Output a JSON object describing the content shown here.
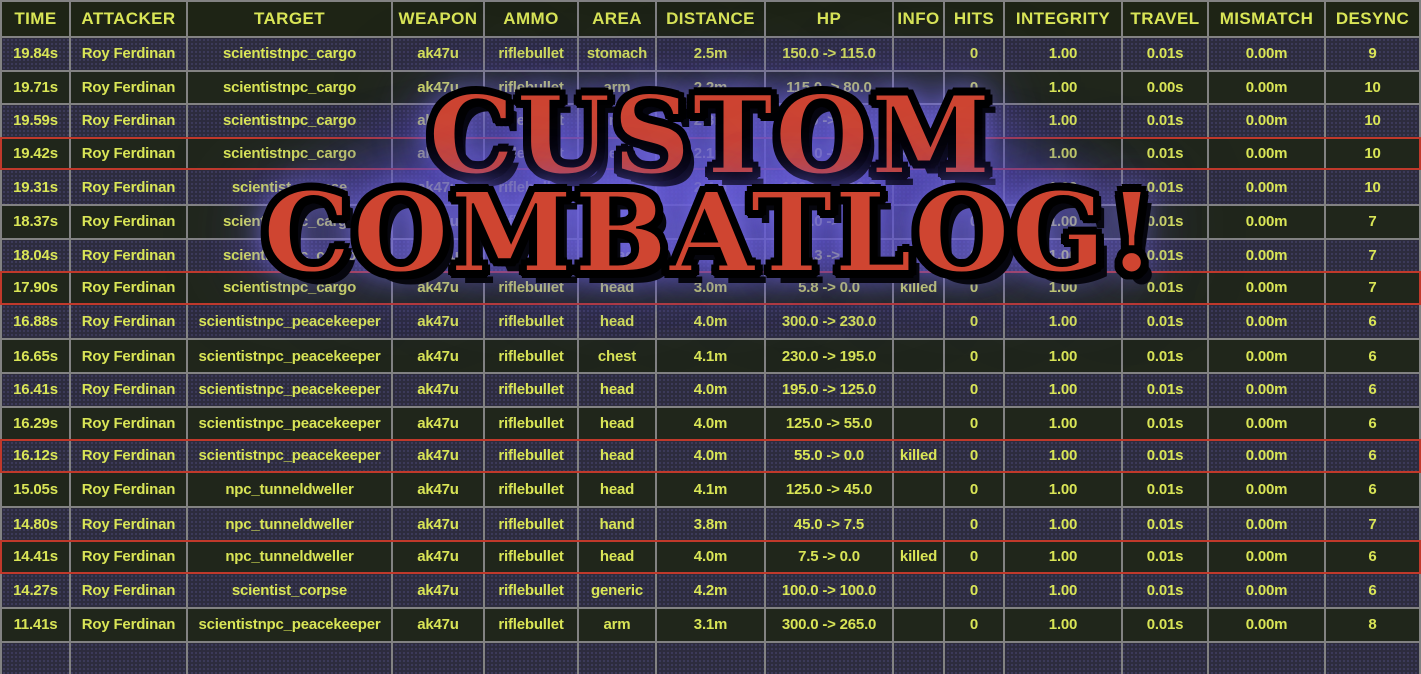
{
  "overlay": {
    "line1": "CUSTOM",
    "line2": "COMBATLOG!",
    "text_color": "#cf4531",
    "glow_color": "#6a5fd6"
  },
  "colors": {
    "row_dark": "#20261b",
    "row_navy": "#2d2c3e",
    "header_bg": "#1e2415",
    "text_yellow": "#d9e556",
    "grid": "#828282",
    "red": "#c0392b",
    "bg": "#000000",
    "overlay_red": "#cf4531"
  },
  "table": {
    "columns": [
      {
        "key": "time",
        "label": "TIME"
      },
      {
        "key": "attacker",
        "label": "ATTACKER"
      },
      {
        "key": "target",
        "label": "TARGET"
      },
      {
        "key": "weapon",
        "label": "WEAPON"
      },
      {
        "key": "ammo",
        "label": "AMMO"
      },
      {
        "key": "area",
        "label": "AREA"
      },
      {
        "key": "distance",
        "label": "DISTANCE"
      },
      {
        "key": "hp",
        "label": "HP"
      },
      {
        "key": "info",
        "label": "INFO"
      },
      {
        "key": "hits",
        "label": "HITS"
      },
      {
        "key": "integrity",
        "label": "INTEGRITY"
      },
      {
        "key": "travel",
        "label": "TRAVEL"
      },
      {
        "key": "mismatch",
        "label": "MISMATCH"
      },
      {
        "key": "desync",
        "label": "DESYNC"
      }
    ],
    "rows": [
      {
        "time": "19.84s",
        "attacker": "Roy Ferdinan",
        "target": "scientistnpc_cargo",
        "weapon": "ak47u",
        "ammo": "riflebullet",
        "area": "stomach",
        "distance": "2.5m",
        "hp": "150.0 -> 115.0",
        "info": "",
        "hits": "0",
        "integrity": "1.00",
        "travel": "0.01s",
        "mismatch": "0.00m",
        "desync": "9",
        "killed": false
      },
      {
        "time": "19.71s",
        "attacker": "Roy Ferdinan",
        "target": "scientistnpc_cargo",
        "weapon": "ak47u",
        "ammo": "riflebullet",
        "area": "arm",
        "distance": "2.2m",
        "hp": "115.0 -> 80.0",
        "info": "",
        "hits": "0",
        "integrity": "1.00",
        "travel": "0.00s",
        "mismatch": "0.00m",
        "desync": "10",
        "killed": false
      },
      {
        "time": "19.59s",
        "attacker": "Roy Ferdinan",
        "target": "scientistnpc_cargo",
        "weapon": "ak47u",
        "ammo": "riflebullet",
        "area": "stomach",
        "distance": "2.3m",
        "hp": "80.0 -> 45.0",
        "info": "",
        "hits": "0",
        "integrity": "1.00",
        "travel": "0.01s",
        "mismatch": "0.00m",
        "desync": "10",
        "killed": false
      },
      {
        "time": "19.42s",
        "attacker": "Roy Ferdinan",
        "target": "scientistnpc_cargo",
        "weapon": "ak47u",
        "ammo": "riflebullet",
        "area": "head",
        "distance": "2.1m",
        "hp": "45.0 -> 0.0",
        "info": "killed",
        "hits": "0",
        "integrity": "1.00",
        "travel": "0.01s",
        "mismatch": "0.00m",
        "desync": "10",
        "killed": true
      },
      {
        "time": "19.31s",
        "attacker": "Roy Ferdinan",
        "target": "scientist_corpse",
        "weapon": "ak47u",
        "ammo": "riflebullet",
        "area": "generic",
        "distance": "2.4m",
        "hp": "100.0 -> 100.0",
        "info": "",
        "hits": "0",
        "integrity": "1.00",
        "travel": "0.01s",
        "mismatch": "0.00m",
        "desync": "10",
        "killed": false
      },
      {
        "time": "18.37s",
        "attacker": "Roy Ferdinan",
        "target": "scientistnpc_cargo",
        "weapon": "ak47u",
        "ammo": "riflebullet",
        "area": "stomach",
        "distance": "2.8m",
        "hp": "150.0 -> 85.3",
        "info": "",
        "hits": "0",
        "integrity": "1.00",
        "travel": "0.01s",
        "mismatch": "0.00m",
        "desync": "7",
        "killed": false
      },
      {
        "time": "18.04s",
        "attacker": "Roy Ferdinan",
        "target": "scientistnpc_cargo",
        "weapon": "ak47u",
        "ammo": "riflebullet",
        "area": "head",
        "distance": "2.9m",
        "hp": "85.3 -> 5.8",
        "info": "",
        "hits": "0",
        "integrity": "1.00",
        "travel": "0.01s",
        "mismatch": "0.00m",
        "desync": "7",
        "killed": false
      },
      {
        "time": "17.90s",
        "attacker": "Roy Ferdinan",
        "target": "scientistnpc_cargo",
        "weapon": "ak47u",
        "ammo": "riflebullet",
        "area": "head",
        "distance": "3.0m",
        "hp": "5.8 -> 0.0",
        "info": "killed",
        "hits": "0",
        "integrity": "1.00",
        "travel": "0.01s",
        "mismatch": "0.00m",
        "desync": "7",
        "killed": true
      },
      {
        "time": "16.88s",
        "attacker": "Roy Ferdinan",
        "target": "scientistnpc_peacekeeper",
        "weapon": "ak47u",
        "ammo": "riflebullet",
        "area": "head",
        "distance": "4.0m",
        "hp": "300.0 -> 230.0",
        "info": "",
        "hits": "0",
        "integrity": "1.00",
        "travel": "0.01s",
        "mismatch": "0.00m",
        "desync": "6",
        "killed": false
      },
      {
        "time": "16.65s",
        "attacker": "Roy Ferdinan",
        "target": "scientistnpc_peacekeeper",
        "weapon": "ak47u",
        "ammo": "riflebullet",
        "area": "chest",
        "distance": "4.1m",
        "hp": "230.0 -> 195.0",
        "info": "",
        "hits": "0",
        "integrity": "1.00",
        "travel": "0.01s",
        "mismatch": "0.00m",
        "desync": "6",
        "killed": false
      },
      {
        "time": "16.41s",
        "attacker": "Roy Ferdinan",
        "target": "scientistnpc_peacekeeper",
        "weapon": "ak47u",
        "ammo": "riflebullet",
        "area": "head",
        "distance": "4.0m",
        "hp": "195.0 -> 125.0",
        "info": "",
        "hits": "0",
        "integrity": "1.00",
        "travel": "0.01s",
        "mismatch": "0.00m",
        "desync": "6",
        "killed": false
      },
      {
        "time": "16.29s",
        "attacker": "Roy Ferdinan",
        "target": "scientistnpc_peacekeeper",
        "weapon": "ak47u",
        "ammo": "riflebullet",
        "area": "head",
        "distance": "4.0m",
        "hp": "125.0 -> 55.0",
        "info": "",
        "hits": "0",
        "integrity": "1.00",
        "travel": "0.01s",
        "mismatch": "0.00m",
        "desync": "6",
        "killed": false
      },
      {
        "time": "16.12s",
        "attacker": "Roy Ferdinan",
        "target": "scientistnpc_peacekeeper",
        "weapon": "ak47u",
        "ammo": "riflebullet",
        "area": "head",
        "distance": "4.0m",
        "hp": "55.0 -> 0.0",
        "info": "killed",
        "hits": "0",
        "integrity": "1.00",
        "travel": "0.01s",
        "mismatch": "0.00m",
        "desync": "6",
        "killed": true
      },
      {
        "time": "15.05s",
        "attacker": "Roy Ferdinan",
        "target": "npc_tunneldweller",
        "weapon": "ak47u",
        "ammo": "riflebullet",
        "area": "head",
        "distance": "4.1m",
        "hp": "125.0 -> 45.0",
        "info": "",
        "hits": "0",
        "integrity": "1.00",
        "travel": "0.01s",
        "mismatch": "0.00m",
        "desync": "6",
        "killed": false
      },
      {
        "time": "14.80s",
        "attacker": "Roy Ferdinan",
        "target": "npc_tunneldweller",
        "weapon": "ak47u",
        "ammo": "riflebullet",
        "area": "hand",
        "distance": "3.8m",
        "hp": "45.0 -> 7.5",
        "info": "",
        "hits": "0",
        "integrity": "1.00",
        "travel": "0.01s",
        "mismatch": "0.00m",
        "desync": "7",
        "killed": false
      },
      {
        "time": "14.41s",
        "attacker": "Roy Ferdinan",
        "target": "npc_tunneldweller",
        "weapon": "ak47u",
        "ammo": "riflebullet",
        "area": "head",
        "distance": "4.0m",
        "hp": "7.5 -> 0.0",
        "info": "killed",
        "hits": "0",
        "integrity": "1.00",
        "travel": "0.01s",
        "mismatch": "0.00m",
        "desync": "6",
        "killed": true
      },
      {
        "time": "14.27s",
        "attacker": "Roy Ferdinan",
        "target": "scientist_corpse",
        "weapon": "ak47u",
        "ammo": "riflebullet",
        "area": "generic",
        "distance": "4.2m",
        "hp": "100.0 -> 100.0",
        "info": "",
        "hits": "0",
        "integrity": "1.00",
        "travel": "0.01s",
        "mismatch": "0.00m",
        "desync": "6",
        "killed": false
      },
      {
        "time": "11.41s",
        "attacker": "Roy Ferdinan",
        "target": "scientistnpc_peacekeeper",
        "weapon": "ak47u",
        "ammo": "riflebullet",
        "area": "arm",
        "distance": "3.1m",
        "hp": "300.0 -> 265.0",
        "info": "",
        "hits": "0",
        "integrity": "1.00",
        "travel": "0.01s",
        "mismatch": "0.00m",
        "desync": "8",
        "killed": false
      },
      {
        "time": "",
        "attacker": "",
        "target": "",
        "weapon": "",
        "ammo": "",
        "area": "",
        "distance": "",
        "hp": "",
        "info": "",
        "hits": "",
        "integrity": "",
        "travel": "",
        "mismatch": "",
        "desync": "",
        "killed": false
      }
    ]
  }
}
